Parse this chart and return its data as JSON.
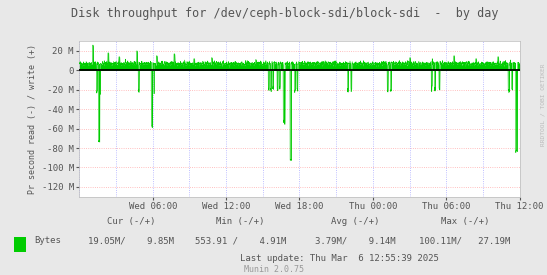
{
  "title": "Disk throughput for /dev/ceph-block-sdi/block-sdi  -  by day",
  "ylabel": "Pr second read (-) / write (+)",
  "background_color": "#e8e8e8",
  "plot_bg_color": "#ffffff",
  "grid_color_h": "#ffaaaa",
  "grid_color_v": "#aaaaff",
  "line_color": "#00cc00",
  "zero_line_color": "#000000",
  "ylim": [
    -130000000,
    30000000
  ],
  "yticks": [
    -120000000,
    -100000000,
    -80000000,
    -60000000,
    -40000000,
    -20000000,
    0,
    20000000
  ],
  "ytick_labels": [
    "-120 M",
    "-100 M",
    "-80 M",
    "-60 M",
    "-40 M",
    "-20 M",
    "0",
    "20 M"
  ],
  "xtick_labels": [
    "Wed 06:00",
    "Wed 12:00",
    "Wed 18:00",
    "Thu 00:00",
    "Thu 06:00",
    "Thu 12:00"
  ],
  "legend_label": "Bytes",
  "legend_color": "#00cc00",
  "footer_cur": "Cur (-/+)",
  "footer_min": "Min (-/+)",
  "footer_avg": "Avg (-/+)",
  "footer_max": "Max (-/+)",
  "footer_cur_val": "19.05M/    9.85M",
  "footer_min_val": "553.91 /    4.91M",
  "footer_avg_val": "3.79M/    9.14M",
  "footer_max_val": "100.11M/   27.19M",
  "footer_last_update": "Last update: Thu Mar  6 12:55:39 2025",
  "munin_label": "Munin 2.0.75",
  "right_label": "RRDTOOL / TOBI OETIKER",
  "title_color": "#555555",
  "axis_label_color": "#555555",
  "tick_color": "#555555",
  "footer_color": "#555555",
  "munin_color": "#999999"
}
